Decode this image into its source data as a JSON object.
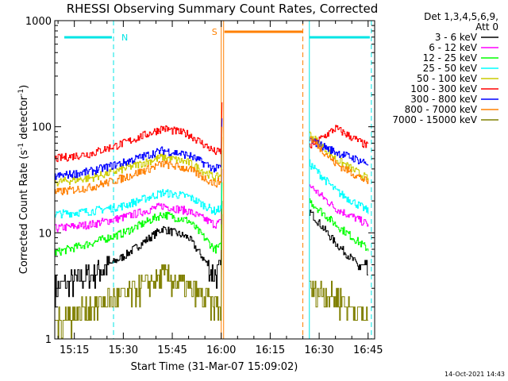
{
  "chart_data": {
    "type": "line",
    "title": "RHESSI Observing Summary Count Rates, Corrected",
    "xlabel": "Start Time (31-Mar-07 15:09:02)",
    "ylabel_main": "Corrected Count Rate (s",
    "ylabel_sup1": "-1",
    "ylabel_mid": " detector",
    "ylabel_sup2": "-1",
    "ylabel_end": ")",
    "y_scale": "log",
    "ylim": [
      1,
      1000
    ],
    "xlim": [
      "15:09",
      "16:47"
    ],
    "x_ticks": [
      "15:15",
      "15:30",
      "15:45",
      "16:00",
      "16:15",
      "16:30",
      "16:45"
    ],
    "y_ticks": [
      "1",
      "10",
      "100",
      "1000"
    ],
    "legend_header": [
      "Det 1,3,4,5,6,9,",
      "Att 0"
    ],
    "legend_position": "right",
    "timestamp": "14-Oct-2021 14:43",
    "annotations": {
      "night_label": "N",
      "saa_label": "S",
      "night_periods": [
        [
          "15:09",
          "15:27"
        ],
        [
          "16:27",
          "16:46"
        ]
      ],
      "saa_period": [
        "16:00",
        "16:25"
      ],
      "data_gap": [
        "16:00",
        "16:27"
      ]
    },
    "series": [
      {
        "name": "3 - 6 keV",
        "color": "#000000",
        "values": [
          {
            "t": "15:09",
            "v": 3
          },
          {
            "t": "15:20",
            "v": 4
          },
          {
            "t": "15:30",
            "v": 6
          },
          {
            "t": "15:42",
            "v": 11
          },
          {
            "t": "15:50",
            "v": 9
          },
          {
            "t": "15:58",
            "v": 4
          },
          {
            "t": "16:27",
            "v": 16
          },
          {
            "t": "16:35",
            "v": 8
          },
          {
            "t": "16:45",
            "v": 4
          }
        ]
      },
      {
        "name": "6 - 12 keV",
        "color": "#ff00ff",
        "values": [
          {
            "t": "15:09",
            "v": 11
          },
          {
            "t": "15:20",
            "v": 12
          },
          {
            "t": "15:30",
            "v": 14
          },
          {
            "t": "15:42",
            "v": 18
          },
          {
            "t": "15:50",
            "v": 16
          },
          {
            "t": "15:58",
            "v": 12
          },
          {
            "t": "16:27",
            "v": 28
          },
          {
            "t": "16:35",
            "v": 17
          },
          {
            "t": "16:45",
            "v": 12
          }
        ]
      },
      {
        "name": "12 - 25 keV",
        "color": "#00ff00",
        "values": [
          {
            "t": "15:09",
            "v": 6.5
          },
          {
            "t": "15:20",
            "v": 8
          },
          {
            "t": "15:30",
            "v": 10
          },
          {
            "t": "15:42",
            "v": 15
          },
          {
            "t": "15:50",
            "v": 13
          },
          {
            "t": "15:58",
            "v": 7
          },
          {
            "t": "16:27",
            "v": 20
          },
          {
            "t": "16:35",
            "v": 12
          },
          {
            "t": "16:45",
            "v": 7
          }
        ]
      },
      {
        "name": "25 - 50 keV",
        "color": "#00ffff",
        "values": [
          {
            "t": "15:09",
            "v": 15
          },
          {
            "t": "15:20",
            "v": 16
          },
          {
            "t": "15:30",
            "v": 18
          },
          {
            "t": "15:42",
            "v": 24
          },
          {
            "t": "15:50",
            "v": 22
          },
          {
            "t": "15:58",
            "v": 16
          },
          {
            "t": "16:27",
            "v": 45
          },
          {
            "t": "16:35",
            "v": 25
          },
          {
            "t": "16:45",
            "v": 16
          }
        ]
      },
      {
        "name": "50 - 100 keV",
        "color": "#cccc00",
        "values": [
          {
            "t": "15:09",
            "v": 30
          },
          {
            "t": "15:20",
            "v": 33
          },
          {
            "t": "15:30",
            "v": 40
          },
          {
            "t": "15:42",
            "v": 52
          },
          {
            "t": "15:50",
            "v": 46
          },
          {
            "t": "15:58",
            "v": 33
          },
          {
            "t": "16:27",
            "v": 85
          },
          {
            "t": "16:35",
            "v": 50
          },
          {
            "t": "16:45",
            "v": 32
          }
        ]
      },
      {
        "name": "100 - 300 keV",
        "color": "#ff0000",
        "values": [
          {
            "t": "15:09",
            "v": 50
          },
          {
            "t": "15:20",
            "v": 56
          },
          {
            "t": "15:30",
            "v": 70
          },
          {
            "t": "15:42",
            "v": 97
          },
          {
            "t": "15:50",
            "v": 85
          },
          {
            "t": "15:58",
            "v": 58
          },
          {
            "t": "16:27",
            "v": 65
          },
          {
            "t": "16:35",
            "v": 97
          },
          {
            "t": "16:45",
            "v": 65
          }
        ]
      },
      {
        "name": "300 - 800 keV",
        "color": "#0000ff",
        "values": [
          {
            "t": "15:09",
            "v": 34
          },
          {
            "t": "15:20",
            "v": 38
          },
          {
            "t": "15:30",
            "v": 46
          },
          {
            "t": "15:42",
            "v": 60
          },
          {
            "t": "15:50",
            "v": 54
          },
          {
            "t": "15:58",
            "v": 40
          },
          {
            "t": "16:27",
            "v": 75
          },
          {
            "t": "16:35",
            "v": 58
          },
          {
            "t": "16:45",
            "v": 45
          }
        ]
      },
      {
        "name": "800 - 7000 keV",
        "color": "#ff8000",
        "values": [
          {
            "t": "15:09",
            "v": 24
          },
          {
            "t": "15:20",
            "v": 27
          },
          {
            "t": "15:30",
            "v": 33
          },
          {
            "t": "15:42",
            "v": 45
          },
          {
            "t": "15:50",
            "v": 40
          },
          {
            "t": "15:58",
            "v": 29
          },
          {
            "t": "16:27",
            "v": 80
          },
          {
            "t": "16:35",
            "v": 45
          },
          {
            "t": "16:45",
            "v": 30
          }
        ]
      },
      {
        "name": "7000 - 15000 keV",
        "color": "#808000",
        "values": [
          {
            "t": "15:09",
            "v": 1.5
          },
          {
            "t": "15:20",
            "v": 2
          },
          {
            "t": "15:30",
            "v": 2.5
          },
          {
            "t": "15:42",
            "v": 4
          },
          {
            "t": "15:50",
            "v": 3
          },
          {
            "t": "15:58",
            "v": 2
          },
          {
            "t": "16:27",
            "v": 3
          },
          {
            "t": "16:35",
            "v": 2.5
          },
          {
            "t": "16:45",
            "v": 1.5
          }
        ]
      }
    ]
  }
}
